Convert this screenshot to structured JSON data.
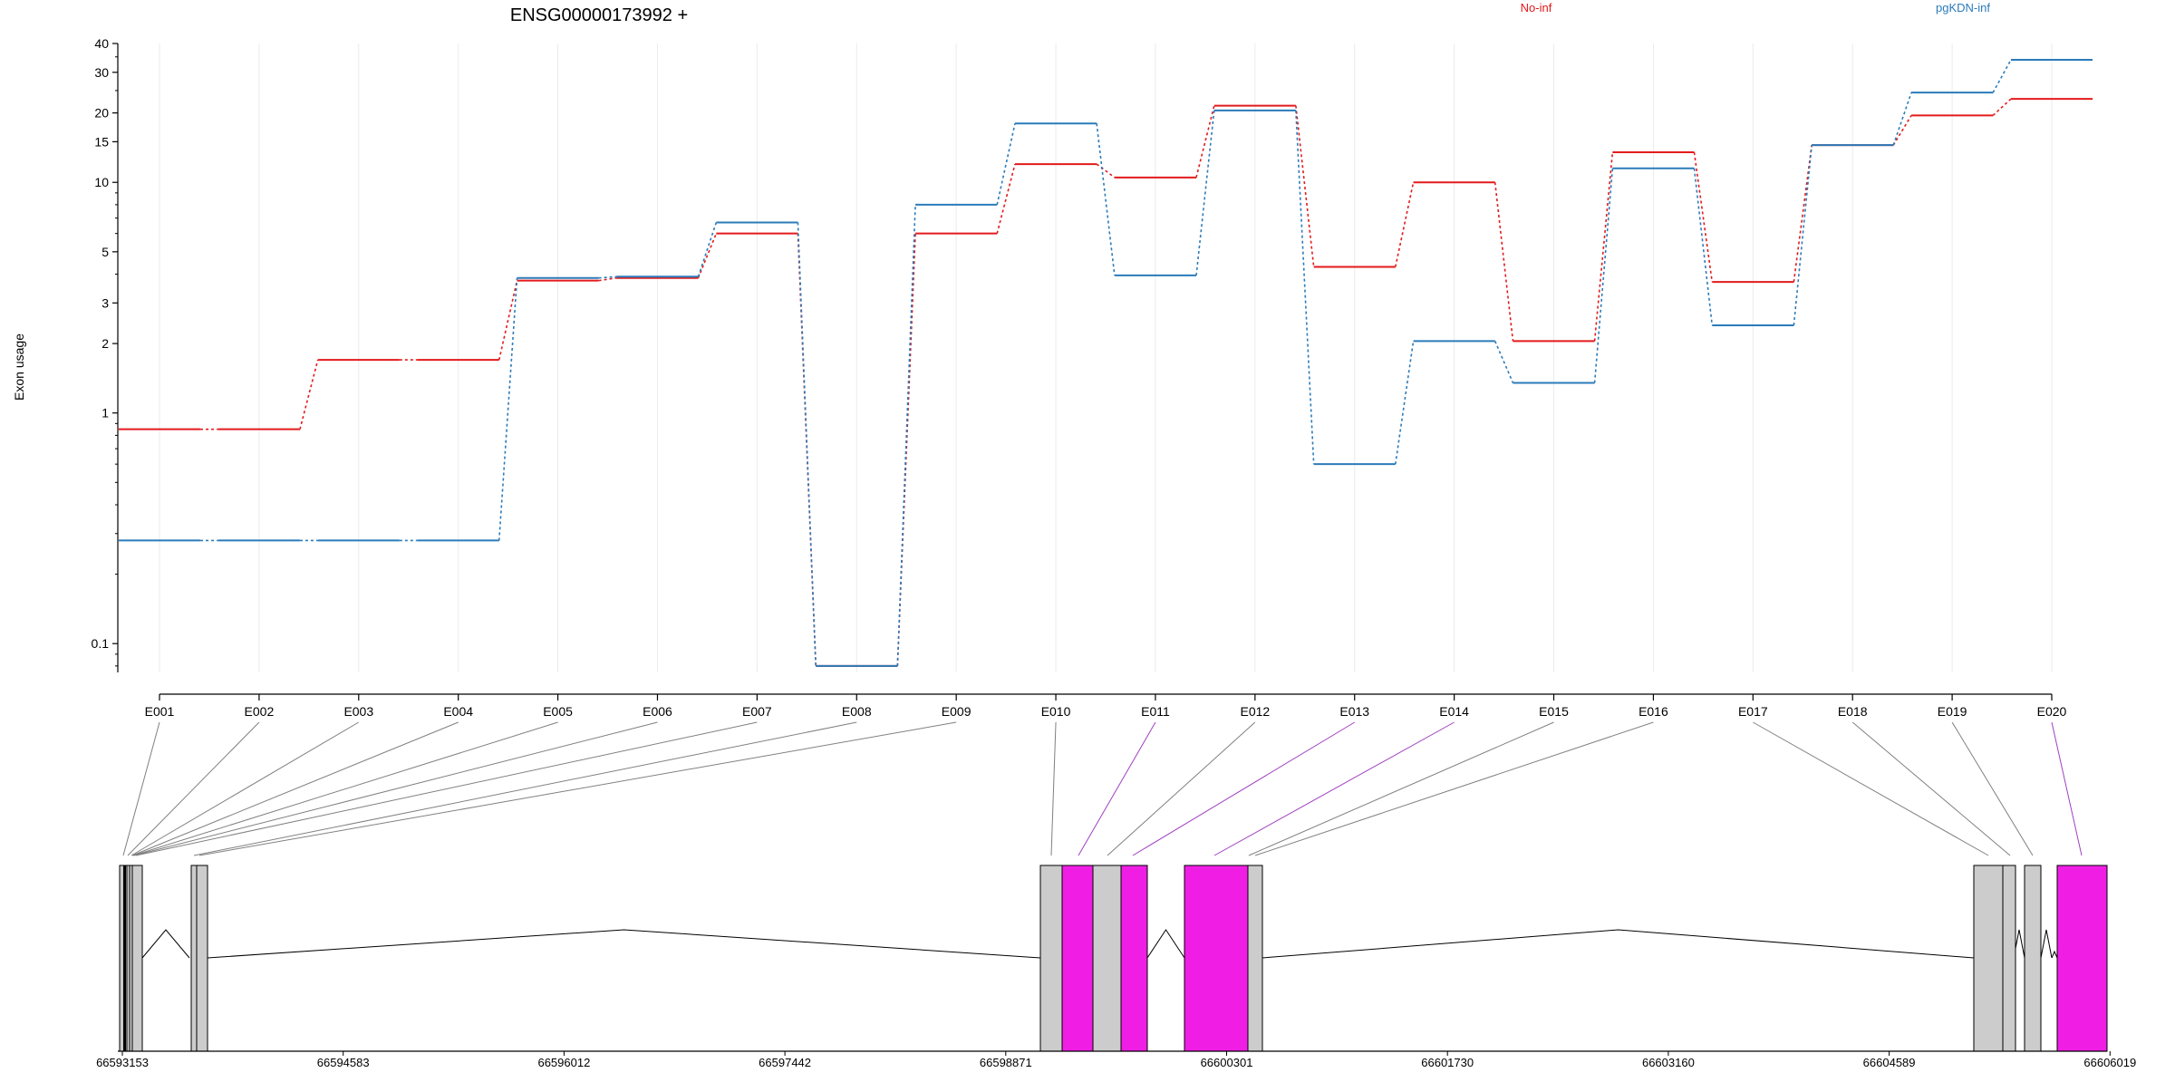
{
  "chart_data": {
    "type": "line",
    "title": "ENSG00000173992 +",
    "ylabel": "Exon usage",
    "yscale": "log",
    "ylim": [
      0.075,
      40
    ],
    "yticks": [
      0.1,
      1,
      2,
      3,
      5,
      10,
      15,
      20,
      30,
      40
    ],
    "ytick_labels": [
      "0.1",
      "1",
      "2",
      "3",
      "5",
      "10",
      "15",
      "20",
      "30",
      "40"
    ],
    "grid": "vertical",
    "legend_position": "top-right",
    "categories": [
      "E001",
      "E002",
      "E003",
      "E004",
      "E005",
      "E006",
      "E007",
      "E008",
      "E009",
      "E010",
      "E011",
      "E012",
      "E013",
      "E014",
      "E015",
      "E016",
      "E017",
      "E018",
      "E019",
      "E020"
    ],
    "series": [
      {
        "name": "No-inf",
        "color": "#e31a1c",
        "values": [
          0.85,
          0.85,
          1.7,
          1.7,
          3.75,
          3.85,
          6.0,
          0.08,
          6.0,
          12.0,
          10.5,
          21.5,
          4.3,
          10.0,
          2.05,
          13.5,
          3.7,
          14.5,
          19.5,
          23.0
        ]
      },
      {
        "name": "pgKDN-inf",
        "color": "#2b7bba",
        "values": [
          0.28,
          0.28,
          0.28,
          0.28,
          3.85,
          3.9,
          6.7,
          0.08,
          8.0,
          18.0,
          3.95,
          20.5,
          0.6,
          2.05,
          1.35,
          11.5,
          2.4,
          14.5,
          24.5,
          34.0
        ]
      }
    ]
  },
  "gene_model": {
    "coordinate_labels": [
      "66593153",
      "66594583",
      "66596012",
      "66597442",
      "66598871",
      "66600301",
      "66601730",
      "66603160",
      "66604589",
      "66606019"
    ],
    "exon_colors": {
      "default": "#cccccc",
      "significant": "#f01ee5"
    },
    "line_colors": {
      "default": "#808080",
      "significant": "#a040c0"
    },
    "significant_exons": [
      "E011",
      "E013",
      "E014",
      "E020"
    ]
  }
}
